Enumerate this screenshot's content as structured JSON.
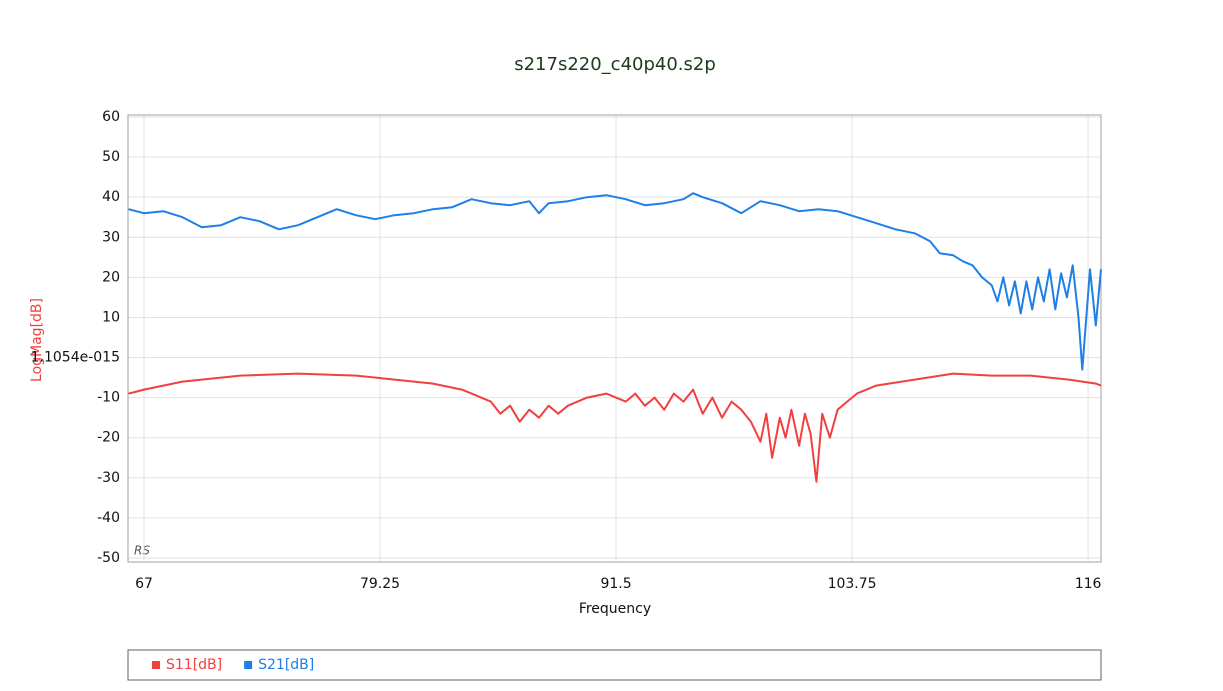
{
  "chart_data": {
    "type": "line",
    "title": "s217s220_c40p40.s2p",
    "xlabel": "Frequency",
    "ylabel": "LogMag[dB]",
    "xlim": [
      66.17,
      116.67
    ],
    "xticks": [
      67,
      79.25,
      91.5,
      103.75,
      116
    ],
    "ylim": [
      -51,
      60.5
    ],
    "yticks": [
      60,
      50,
      40,
      30,
      20,
      10,
      {
        "value": 0,
        "label": "1.1054e-015"
      },
      -10,
      -20,
      -30,
      -40,
      -50
    ],
    "grid": true,
    "legend": "bottom",
    "watermark": "RS",
    "series": [
      {
        "name": "S11[dB]",
        "color": "#f2403f",
        "x": [
          66.2,
          67,
          69,
          72,
          75,
          78,
          80,
          82,
          83.5,
          85,
          85.5,
          86,
          86.5,
          87,
          87.5,
          88,
          88.5,
          89,
          90,
          91,
          92,
          92.5,
          93,
          93.5,
          94,
          94.5,
          95,
          95.5,
          96,
          96.5,
          97,
          97.5,
          98,
          98.5,
          99,
          99.3,
          99.6,
          100,
          100.3,
          100.6,
          101,
          101.3,
          101.6,
          101.9,
          102.2,
          102.6,
          103,
          103.5,
          104,
          105,
          107,
          109,
          111,
          113,
          115,
          116.4,
          116.67
        ],
        "values": [
          -9,
          -8,
          -6,
          -4.5,
          -4,
          -4.5,
          -5.5,
          -6.5,
          -8,
          -11,
          -14,
          -12,
          -16,
          -13,
          -15,
          -12,
          -14,
          -12,
          -10,
          -9,
          -11,
          -9,
          -12,
          -10,
          -13,
          -9,
          -11,
          -8,
          -14,
          -10,
          -15,
          -11,
          -13,
          -16,
          -21,
          -14,
          -25,
          -15,
          -20,
          -13,
          -22,
          -14,
          -19,
          -31,
          -14,
          -20,
          -13,
          -11,
          -9,
          -7,
          -5.5,
          -4,
          -4.5,
          -4.5,
          -5.5,
          -6.5,
          -7
        ]
      },
      {
        "name": "S21[dB]",
        "color": "#1e7fe6",
        "x": [
          66.2,
          67,
          68,
          69,
          70,
          71,
          72,
          73,
          74,
          75,
          76,
          77,
          78,
          79,
          80,
          81,
          82,
          83,
          84,
          85,
          86,
          87,
          87.5,
          88,
          89,
          90,
          91,
          92,
          93,
          94,
          95,
          95.5,
          96,
          97,
          98,
          99,
          100,
          101,
          102,
          103,
          104,
          105,
          106,
          107,
          107.8,
          108.3,
          109,
          109.5,
          110,
          110.5,
          111,
          111.3,
          111.6,
          111.9,
          112.2,
          112.5,
          112.8,
          113.1,
          113.4,
          113.7,
          114,
          114.3,
          114.6,
          114.9,
          115.2,
          115.5,
          115.7,
          116.1,
          116.4,
          116.67
        ],
        "values": [
          37,
          36,
          36.5,
          35,
          32.5,
          33,
          35,
          34,
          32,
          33,
          35,
          37,
          35.5,
          34.5,
          35.5,
          36,
          37,
          37.5,
          39.5,
          38.5,
          38,
          39,
          36,
          38.5,
          39,
          40,
          40.5,
          39.5,
          38,
          38.5,
          39.5,
          41,
          40,
          38.5,
          36,
          39,
          38,
          36.5,
          37,
          36.5,
          35,
          33.5,
          32,
          31,
          29,
          26,
          25.5,
          24,
          23,
          20,
          18,
          14,
          20,
          13,
          19,
          11,
          19,
          12,
          20,
          14,
          22,
          12,
          21,
          15,
          23,
          10,
          -3,
          22,
          8,
          22
        ]
      }
    ]
  }
}
